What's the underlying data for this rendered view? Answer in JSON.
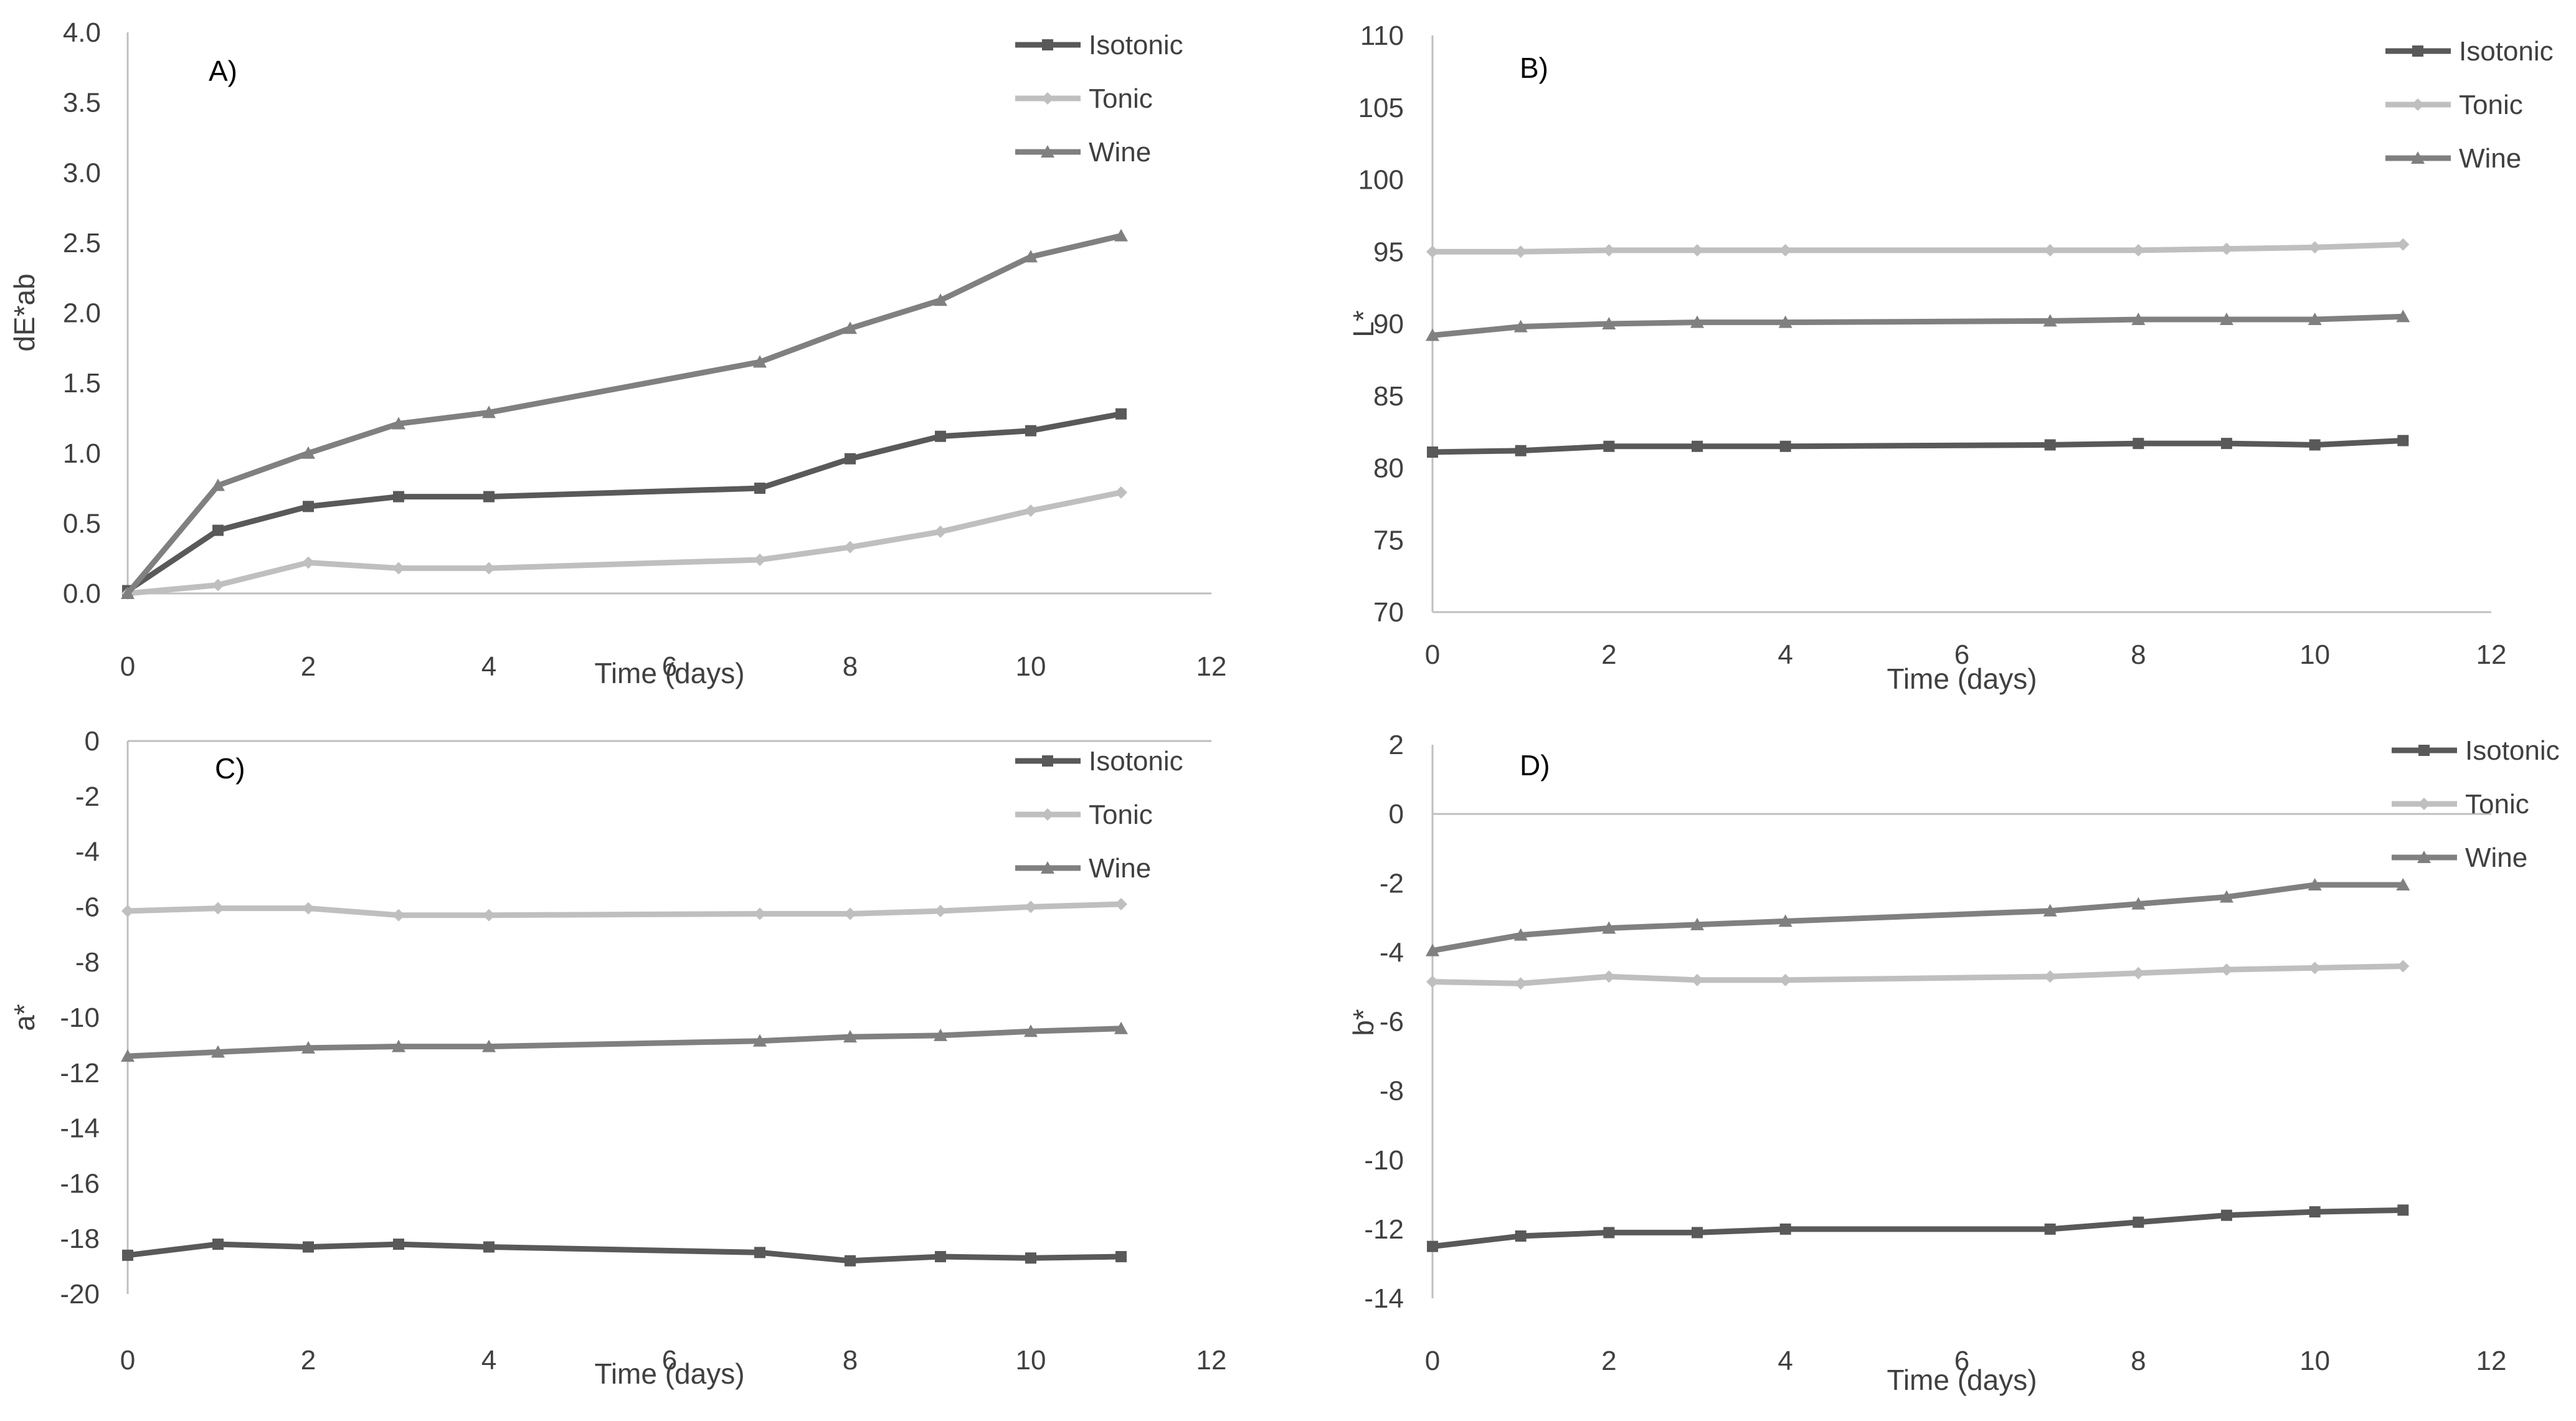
{
  "figure": {
    "title": ""
  },
  "chart_data": [
    {
      "type": "line",
      "panel_label": "A)",
      "title": "",
      "xlabel": "Time (days)",
      "ylabel": "dE*ab",
      "x": [
        0,
        1,
        2,
        3,
        4,
        7,
        8,
        9,
        10,
        11
      ],
      "xlim": [
        0,
        12
      ],
      "xticks": [
        0,
        2,
        4,
        6,
        8,
        10,
        12
      ],
      "ylim": [
        0,
        4
      ],
      "yticks": [
        0,
        0.5,
        1,
        1.5,
        2,
        2.5,
        3,
        3.5,
        4
      ],
      "ytick_labels": [
        "0.0",
        "0.5",
        "1.0",
        "1.5",
        "2.0",
        "2.5",
        "3.0",
        "3.5",
        "4.0"
      ],
      "legend_position": "top-right",
      "series": [
        {
          "name": "Isotonic",
          "marker": "square",
          "color": "#595959",
          "values": [
            0.02,
            0.45,
            0.62,
            0.69,
            0.69,
            0.75,
            0.96,
            1.12,
            1.16,
            1.28
          ]
        },
        {
          "name": "Tonic",
          "marker": "diamond",
          "color": "#bfbfbf",
          "values": [
            0.0,
            0.06,
            0.22,
            0.18,
            0.18,
            0.24,
            0.33,
            0.44,
            0.59,
            0.72
          ]
        },
        {
          "name": "Wine",
          "marker": "triangle",
          "color": "#808080",
          "values": [
            0.0,
            0.77,
            1.0,
            1.21,
            1.29,
            1.65,
            1.89,
            2.09,
            2.4,
            2.55
          ]
        }
      ]
    },
    {
      "type": "line",
      "panel_label": "B)",
      "title": "",
      "xlabel": "Time (days)",
      "ylabel": "L*",
      "x": [
        0,
        1,
        2,
        3,
        4,
        7,
        8,
        9,
        10,
        11
      ],
      "xlim": [
        0,
        12
      ],
      "xticks": [
        0,
        2,
        4,
        6,
        8,
        10,
        12
      ],
      "ylim": [
        70,
        110
      ],
      "yticks": [
        70,
        75,
        80,
        85,
        90,
        95,
        100,
        105,
        110
      ],
      "ytick_labels": [
        "70",
        "75",
        "80",
        "85",
        "90",
        "95",
        "100",
        "105",
        "110"
      ],
      "legend_position": "top-right",
      "series": [
        {
          "name": "Isotonic",
          "marker": "square",
          "color": "#595959",
          "values": [
            81.1,
            81.2,
            81.5,
            81.5,
            81.5,
            81.6,
            81.7,
            81.7,
            81.6,
            81.9
          ]
        },
        {
          "name": "Tonic",
          "marker": "diamond",
          "color": "#bfbfbf",
          "values": [
            95.0,
            95.0,
            95.1,
            95.1,
            95.1,
            95.1,
            95.1,
            95.2,
            95.3,
            95.5
          ]
        },
        {
          "name": "Wine",
          "marker": "triangle",
          "color": "#808080",
          "values": [
            89.2,
            89.8,
            90.0,
            90.1,
            90.1,
            90.2,
            90.3,
            90.3,
            90.3,
            90.5
          ]
        }
      ]
    },
    {
      "type": "line",
      "panel_label": "C)",
      "title": "",
      "xlabel": "Time (days)",
      "ylabel": "a*",
      "x": [
        0,
        1,
        2,
        3,
        4,
        7,
        8,
        9,
        10,
        11
      ],
      "xlim": [
        0,
        12
      ],
      "xticks": [
        0,
        2,
        4,
        6,
        8,
        10,
        12
      ],
      "ylim": [
        -20,
        0
      ],
      "yticks": [
        -20,
        -18,
        -16,
        -14,
        -12,
        -10,
        -8,
        -6,
        -4,
        -2,
        0
      ],
      "ytick_labels": [
        "-20",
        "-18",
        "-16",
        "-14",
        "-12",
        "-10",
        "-8",
        "-6",
        "-4",
        "-2",
        "0"
      ],
      "legend_position": "top-right",
      "series": [
        {
          "name": "Isotonic",
          "marker": "square",
          "color": "#595959",
          "values": [
            -18.6,
            -18.2,
            -18.3,
            -18.2,
            -18.3,
            -18.5,
            -18.8,
            -18.65,
            -18.7,
            -18.65
          ]
        },
        {
          "name": "Tonic",
          "marker": "diamond",
          "color": "#bfbfbf",
          "values": [
            -6.15,
            -6.05,
            -6.05,
            -6.3,
            -6.3,
            -6.25,
            -6.25,
            -6.15,
            -6.0,
            -5.9
          ]
        },
        {
          "name": "Wine",
          "marker": "triangle",
          "color": "#808080",
          "values": [
            -11.4,
            -11.25,
            -11.1,
            -11.05,
            -11.05,
            -10.85,
            -10.7,
            -10.65,
            -10.5,
            -10.4
          ]
        }
      ]
    },
    {
      "type": "line",
      "panel_label": "D)",
      "title": "",
      "xlabel": "Time (days)",
      "ylabel": "b*",
      "x": [
        0,
        1,
        2,
        3,
        4,
        7,
        8,
        9,
        10,
        11
      ],
      "xlim": [
        0,
        12
      ],
      "xticks": [
        0,
        2,
        4,
        6,
        8,
        10,
        12
      ],
      "ylim": [
        -14,
        2
      ],
      "yticks": [
        -14,
        -12,
        -10,
        -8,
        -6,
        -4,
        -2,
        0,
        2
      ],
      "ytick_labels": [
        "-14",
        "-12",
        "-10",
        "-8",
        "-6",
        "-4",
        "-2",
        "0",
        "2"
      ],
      "legend_position": "top-right",
      "series": [
        {
          "name": "Isotonic",
          "marker": "square",
          "color": "#595959",
          "values": [
            -12.5,
            -12.2,
            -12.1,
            -12.1,
            -12.0,
            -12.0,
            -11.8,
            -11.6,
            -11.5,
            -11.45
          ]
        },
        {
          "name": "Tonic",
          "marker": "diamond",
          "color": "#bfbfbf",
          "values": [
            -4.85,
            -4.9,
            -4.7,
            -4.8,
            -4.8,
            -4.7,
            -4.6,
            -4.5,
            -4.45,
            -4.4
          ]
        },
        {
          "name": "Wine",
          "marker": "triangle",
          "color": "#808080",
          "values": [
            -3.95,
            -3.5,
            -3.3,
            -3.2,
            -3.1,
            -2.8,
            -2.6,
            -2.4,
            -2.05,
            -2.05
          ]
        }
      ]
    }
  ]
}
